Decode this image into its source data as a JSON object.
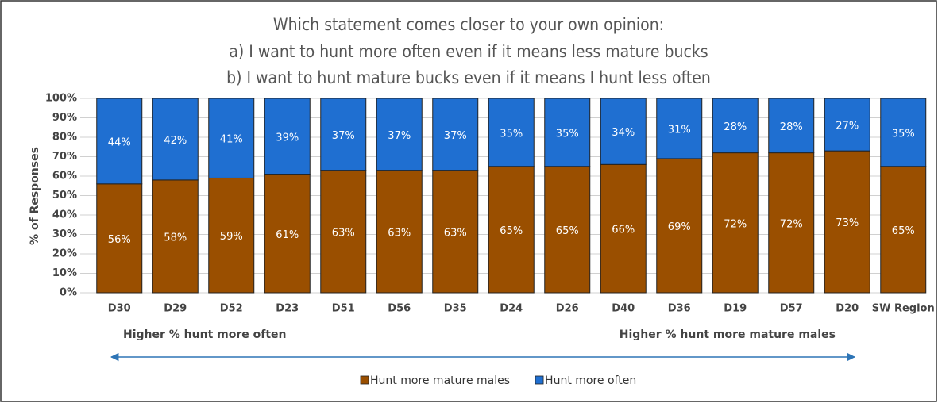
{
  "chart_data": {
    "type": "stacked_bar",
    "title": [
      "Which statement comes closer to your own opinion:",
      "a) I want to hunt more often even if it means less mature bucks",
      "b) I want to hunt mature bucks even if it means I hunt less often"
    ],
    "y_label": "% of Responses",
    "categories": [
      "D30",
      "D29",
      "D52",
      "D23",
      "D51",
      "D56",
      "D35",
      "D24",
      "D26",
      "D40",
      "D36",
      "D19",
      "D57",
      "D20",
      "SW Region"
    ],
    "series": [
      {
        "name": "Hunt more mature males",
        "color": "#9a4f00",
        "values": [
          56,
          58,
          59,
          61,
          63,
          63,
          63,
          65,
          65,
          66,
          69,
          72,
          72,
          73,
          65
        ],
        "value_labels": [
          "56%",
          "58%",
          "59%",
          "61%",
          "63%",
          "63%",
          "63%",
          "65%",
          "65%",
          "66%",
          "69%",
          "72%",
          "72%",
          "73%",
          "65%"
        ]
      },
      {
        "name": "Hunt more often",
        "color": "#1f6fd1",
        "values": [
          44,
          42,
          41,
          39,
          37,
          37,
          37,
          35,
          35,
          34,
          31,
          28,
          28,
          27,
          35
        ],
        "value_labels": [
          "44%",
          "42%",
          "41%",
          "39%",
          "37%",
          "37%",
          "37%",
          "35%",
          "35%",
          "34%",
          "31%",
          "28%",
          "28%",
          "27%",
          "35%"
        ]
      }
    ],
    "ylim": [
      0,
      100
    ],
    "yticks": [
      {
        "value": 0,
        "label": "0%"
      },
      {
        "value": 10,
        "label": "10%"
      },
      {
        "value": 20,
        "label": "20%"
      },
      {
        "value": 30,
        "label": "30%"
      },
      {
        "value": 40,
        "label": "40%"
      },
      {
        "value": 50,
        "label": "50%"
      },
      {
        "value": 60,
        "label": "60%"
      },
      {
        "value": 70,
        "label": "70%"
      },
      {
        "value": 80,
        "label": "80%"
      },
      {
        "value": 90,
        "label": "90%"
      },
      {
        "value": 100,
        "label": "100%"
      }
    ],
    "grid": true,
    "annotations": [
      "Higher % hunt more often",
      "Higher % hunt more mature males"
    ],
    "legend": "bottom"
  }
}
